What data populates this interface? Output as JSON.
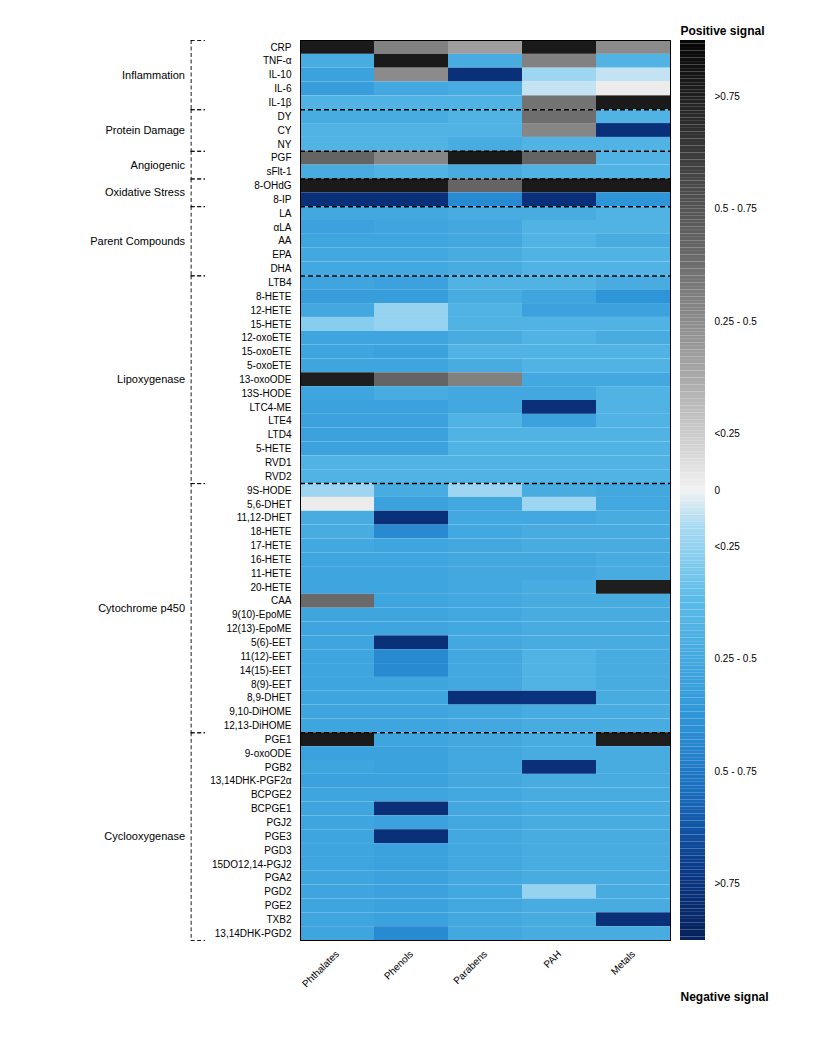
{
  "chart_data": {
    "type": "heatmap",
    "rows": [
      "CRP",
      "TNF-α",
      "IL-10",
      "IL-6",
      "IL-1β",
      "DY",
      "CY",
      "NY",
      "PGF",
      "sFlt-1",
      "8-OHdG",
      "8-IP",
      "LA",
      "αLA",
      "AA",
      "EPA",
      "DHA",
      "LTB4",
      "8-HETE",
      "12-HETE",
      "15-HETE",
      "12-oxoETE",
      "15-oxoETE",
      "5-oxoETE",
      "13-oxoODE",
      "13S-HODE",
      "LTC4-ME",
      "LTE4",
      "LTD4",
      "5-HETE",
      "RVD1",
      "RVD2",
      "9S-HODE",
      "5,6-DHET",
      "11,12-DHET",
      "18-HETE",
      "17-HETE",
      "16-HETE",
      "11-HETE",
      "20-HETE",
      "CAA",
      "9(10)-EpoME",
      "12(13)-EpoME",
      "5(6)-EET",
      "11(12)-EET",
      "14(15)-EET",
      "8(9)-EET",
      "8,9-DHET",
      "9,10-DiHOME",
      "12,13-DiHOME",
      "PGE1",
      "9-oxoODE",
      "PGB2",
      "13,14DHK-PGF2α",
      "BCPGE2",
      "BCPGE1",
      "PGJ2",
      "PGE3",
      "PGD3",
      "15DO12,14-PGJ2",
      "PGA2",
      "PGD2",
      "PGE2",
      "TXB2",
      "13,14DHK-PGD2"
    ],
    "categories": [
      "Phthalates",
      "Phenols",
      "Parabens",
      "PAH",
      "Metals"
    ],
    "values": [
      [
        0.9,
        0.42,
        0.3,
        0.9,
        0.38
      ],
      [
        -0.35,
        0.9,
        -0.35,
        0.42,
        -0.3
      ],
      [
        -0.42,
        0.38,
        -0.9,
        -0.1,
        -0.05
      ],
      [
        -0.45,
        -0.38,
        -0.35,
        -0.05,
        0.02
      ],
      [
        -0.3,
        -0.3,
        -0.3,
        0.48,
        0.9
      ],
      [
        -0.35,
        -0.35,
        -0.3,
        0.5,
        -0.3
      ],
      [
        -0.3,
        -0.3,
        -0.3,
        0.4,
        -0.9
      ],
      [
        -0.3,
        -0.3,
        -0.35,
        -0.3,
        -0.3
      ],
      [
        0.55,
        0.4,
        0.9,
        0.55,
        -0.3
      ],
      [
        -0.35,
        -0.3,
        -0.35,
        -0.3,
        -0.3
      ],
      [
        0.9,
        0.9,
        0.55,
        0.9,
        0.9
      ],
      [
        -0.9,
        -0.9,
        -0.55,
        -0.9,
        -0.5
      ],
      [
        -0.38,
        -0.38,
        -0.35,
        -0.35,
        -0.3
      ],
      [
        -0.42,
        -0.4,
        -0.38,
        -0.3,
        -0.3
      ],
      [
        -0.4,
        -0.4,
        -0.38,
        -0.3,
        -0.35
      ],
      [
        -0.38,
        -0.38,
        -0.35,
        -0.3,
        -0.3
      ],
      [
        -0.38,
        -0.38,
        -0.35,
        -0.3,
        -0.3
      ],
      [
        -0.4,
        -0.42,
        -0.3,
        -0.3,
        -0.35
      ],
      [
        -0.45,
        -0.45,
        -0.35,
        -0.4,
        -0.5
      ],
      [
        -0.38,
        -0.12,
        -0.3,
        -0.42,
        -0.42
      ],
      [
        -0.15,
        -0.12,
        -0.3,
        -0.3,
        -0.3
      ],
      [
        -0.4,
        -0.4,
        -0.35,
        -0.3,
        -0.35
      ],
      [
        -0.4,
        -0.42,
        -0.3,
        -0.3,
        -0.3
      ],
      [
        -0.4,
        -0.4,
        -0.35,
        -0.3,
        -0.3
      ],
      [
        0.88,
        0.55,
        0.42,
        -0.38,
        -0.38
      ],
      [
        -0.4,
        -0.35,
        -0.38,
        -0.38,
        -0.3
      ],
      [
        -0.42,
        -0.42,
        -0.38,
        -0.9,
        -0.3
      ],
      [
        -0.42,
        -0.42,
        -0.3,
        -0.42,
        -0.3
      ],
      [
        -0.42,
        -0.42,
        -0.3,
        -0.3,
        -0.3
      ],
      [
        -0.42,
        -0.42,
        -0.3,
        -0.3,
        -0.3
      ],
      [
        -0.3,
        -0.3,
        -0.3,
        -0.3,
        -0.3
      ],
      [
        -0.3,
        -0.3,
        -0.3,
        -0.3,
        -0.3
      ],
      [
        -0.1,
        -0.35,
        -0.1,
        -0.35,
        -0.38
      ],
      [
        0.02,
        -0.42,
        -0.38,
        -0.1,
        -0.38
      ],
      [
        -0.35,
        -0.9,
        -0.38,
        -0.38,
        -0.35
      ],
      [
        -0.35,
        -0.55,
        -0.38,
        -0.35,
        -0.35
      ],
      [
        -0.38,
        -0.4,
        -0.38,
        -0.35,
        -0.35
      ],
      [
        -0.4,
        -0.4,
        -0.38,
        -0.38,
        -0.35
      ],
      [
        -0.4,
        -0.4,
        -0.38,
        -0.38,
        -0.35
      ],
      [
        -0.4,
        -0.4,
        -0.38,
        -0.35,
        0.88
      ],
      [
        0.52,
        -0.4,
        -0.38,
        -0.35,
        -0.35
      ],
      [
        -0.4,
        -0.4,
        -0.38,
        -0.35,
        -0.35
      ],
      [
        -0.4,
        -0.4,
        -0.38,
        -0.35,
        -0.35
      ],
      [
        -0.4,
        -0.9,
        -0.38,
        -0.35,
        -0.35
      ],
      [
        -0.4,
        -0.55,
        -0.38,
        -0.3,
        -0.35
      ],
      [
        -0.4,
        -0.55,
        -0.38,
        -0.3,
        -0.35
      ],
      [
        -0.4,
        -0.4,
        -0.38,
        -0.3,
        -0.35
      ],
      [
        -0.4,
        -0.4,
        -0.9,
        -0.88,
        -0.35
      ],
      [
        -0.4,
        -0.4,
        -0.38,
        -0.35,
        -0.35
      ],
      [
        -0.4,
        -0.4,
        -0.38,
        -0.35,
        -0.35
      ],
      [
        0.9,
        -0.4,
        -0.38,
        -0.35,
        0.88
      ],
      [
        -0.42,
        -0.42,
        -0.38,
        -0.35,
        -0.35
      ],
      [
        -0.4,
        -0.42,
        -0.38,
        -0.9,
        -0.35
      ],
      [
        -0.42,
        -0.42,
        -0.38,
        -0.35,
        -0.35
      ],
      [
        -0.4,
        -0.4,
        -0.38,
        -0.35,
        -0.35
      ],
      [
        -0.4,
        -0.9,
        -0.38,
        -0.35,
        -0.35
      ],
      [
        -0.4,
        -0.42,
        -0.38,
        -0.35,
        -0.35
      ],
      [
        -0.4,
        -0.9,
        -0.38,
        -0.35,
        -0.35
      ],
      [
        -0.4,
        -0.42,
        -0.38,
        -0.35,
        -0.35
      ],
      [
        -0.4,
        -0.42,
        -0.38,
        -0.35,
        -0.35
      ],
      [
        -0.4,
        -0.42,
        -0.38,
        -0.35,
        -0.35
      ],
      [
        -0.4,
        -0.42,
        -0.38,
        -0.12,
        -0.35
      ],
      [
        -0.4,
        -0.42,
        -0.38,
        -0.35,
        -0.35
      ],
      [
        -0.4,
        -0.42,
        -0.38,
        -0.35,
        -0.9
      ],
      [
        -0.4,
        -0.55,
        -0.38,
        -0.35,
        -0.35
      ]
    ],
    "groups": [
      {
        "name": "Inflammation",
        "first_row": 0,
        "last_row": 4
      },
      {
        "name": "Protein Damage",
        "first_row": 5,
        "last_row": 7
      },
      {
        "name": "Angiogenic",
        "first_row": 8,
        "last_row": 9
      },
      {
        "name": "Oxidative Stress",
        "first_row": 10,
        "last_row": 11
      },
      {
        "name": "Parent Compounds",
        "first_row": 12,
        "last_row": 16
      },
      {
        "name": "Lipoxygenase",
        "first_row": 17,
        "last_row": 31
      },
      {
        "name": "Cytochrome p450",
        "first_row": 32,
        "last_row": 49
      },
      {
        "name": "Cyclooxygenase",
        "first_row": 50,
        "last_row": 64
      }
    ],
    "color_scale": [
      {
        "value": -1,
        "color": "#06205a"
      },
      {
        "value": -0.84,
        "color": "#0a3a8a"
      },
      {
        "value": -0.66,
        "color": "#1a70c0"
      },
      {
        "value": -0.5,
        "color": "#2e96d8"
      },
      {
        "value": -0.24,
        "color": "#5bbce8"
      },
      {
        "value": -0.08,
        "color": "#a8daf2"
      },
      {
        "value": 0,
        "color": "#f2f2f2"
      },
      {
        "value": 0.08,
        "color": "#d8d8d8"
      },
      {
        "value": 0.25,
        "color": "#aaaaaa"
      },
      {
        "value": 0.5,
        "color": "#6e6e6e"
      },
      {
        "value": 0.75,
        "color": "#3a3a3a"
      },
      {
        "value": 1,
        "color": "#050505"
      }
    ],
    "colorbar": {
      "range": [
        -1,
        1
      ],
      "ticks": [
        {
          "value": 0.875,
          "label": ">0.75"
        },
        {
          "value": 0.625,
          "label": "0.5 - 0.75"
        },
        {
          "value": 0.375,
          "label": "0.25 - 0.5"
        },
        {
          "value": 0.125,
          "label": "<0.25"
        },
        0,
        {
          "value": -0.125,
          "label": "<0.25"
        },
        {
          "value": -0.375,
          "label": "0.25 - 0.5"
        },
        {
          "value": -0.625,
          "label": "0.5 - 0.75"
        },
        {
          "value": -0.875,
          "label": ">0.75"
        }
      ],
      "title_top": "Positive signal",
      "title_bottom": "Negative signal"
    }
  }
}
